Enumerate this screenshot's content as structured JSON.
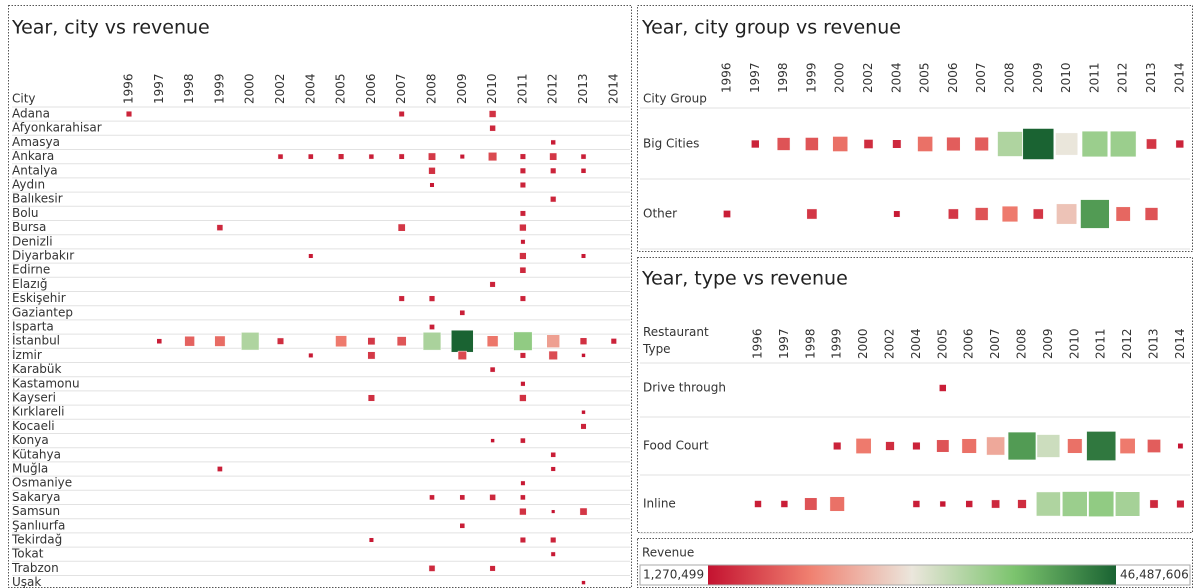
{
  "chart_data": [
    {
      "type": "heatmap",
      "title": "Year, city vs revenue",
      "row_header": "City",
      "categories": [
        "1996",
        "1997",
        "1998",
        "1999",
        "2000",
        "2002",
        "2004",
        "2005",
        "2006",
        "2007",
        "2008",
        "2009",
        "2010",
        "2011",
        "2012",
        "2013",
        "2014"
      ],
      "series": [
        {
          "name": "Adana",
          "values": [
            3100000,
            null,
            null,
            null,
            null,
            null,
            null,
            null,
            null,
            2900000,
            null,
            null,
            4600000,
            null,
            null,
            null,
            null
          ]
        },
        {
          "name": "Afyonkarahisar",
          "values": [
            null,
            null,
            null,
            null,
            null,
            null,
            null,
            null,
            null,
            null,
            null,
            null,
            3400000,
            null,
            null,
            null,
            null
          ]
        },
        {
          "name": "Amasya",
          "values": [
            null,
            null,
            null,
            null,
            null,
            null,
            null,
            null,
            null,
            null,
            null,
            null,
            null,
            null,
            2300000,
            null,
            null
          ]
        },
        {
          "name": "Ankara",
          "values": [
            null,
            null,
            null,
            null,
            null,
            2500000,
            2600000,
            3100000,
            2400000,
            2800000,
            5200000,
            2000000,
            7000000,
            3000000,
            5100000,
            2500000,
            null
          ]
        },
        {
          "name": "Antalya",
          "values": [
            null,
            null,
            null,
            null,
            null,
            null,
            null,
            null,
            null,
            null,
            4500000,
            null,
            null,
            3000000,
            3000000,
            2400000,
            null
          ]
        },
        {
          "name": "Aydın",
          "values": [
            null,
            null,
            null,
            null,
            null,
            null,
            null,
            null,
            null,
            null,
            2000000,
            null,
            null,
            3000000,
            null,
            null,
            null
          ]
        },
        {
          "name": "Balıkesir",
          "values": [
            null,
            null,
            null,
            null,
            null,
            null,
            null,
            null,
            null,
            null,
            null,
            null,
            null,
            null,
            3100000,
            null,
            null
          ]
        },
        {
          "name": "Bolu",
          "values": [
            null,
            null,
            null,
            null,
            null,
            null,
            null,
            null,
            null,
            null,
            null,
            null,
            null,
            2900000,
            null,
            null,
            null
          ]
        },
        {
          "name": "Bursa",
          "values": [
            null,
            null,
            null,
            3500000,
            null,
            null,
            null,
            null,
            null,
            5100000,
            null,
            null,
            null,
            4500000,
            null,
            null,
            null
          ]
        },
        {
          "name": "Denizli",
          "values": [
            null,
            null,
            null,
            null,
            null,
            null,
            null,
            null,
            null,
            null,
            null,
            null,
            null,
            2000000,
            null,
            null,
            null
          ]
        },
        {
          "name": "Diyarbakır",
          "values": [
            null,
            null,
            null,
            null,
            null,
            null,
            2000000,
            null,
            null,
            null,
            null,
            null,
            null,
            4400000,
            null,
            2000000,
            null
          ]
        },
        {
          "name": "Edirne",
          "values": [
            null,
            null,
            null,
            null,
            null,
            null,
            null,
            null,
            null,
            null,
            null,
            null,
            null,
            3600000,
            null,
            null,
            null
          ]
        },
        {
          "name": "Elazığ",
          "values": [
            null,
            null,
            null,
            null,
            null,
            null,
            null,
            null,
            null,
            null,
            null,
            null,
            3000000,
            null,
            null,
            null,
            null
          ]
        },
        {
          "name": "Eskişehir",
          "values": [
            null,
            null,
            null,
            null,
            null,
            null,
            null,
            null,
            null,
            3000000,
            3200000,
            null,
            null,
            3000000,
            null,
            null,
            null
          ]
        },
        {
          "name": "Gaziantep",
          "values": [
            null,
            null,
            null,
            null,
            null,
            null,
            null,
            null,
            null,
            null,
            null,
            2600000,
            null,
            null,
            null,
            null,
            null
          ]
        },
        {
          "name": "Isparta",
          "values": [
            null,
            null,
            null,
            null,
            null,
            null,
            null,
            null,
            null,
            null,
            2600000,
            null,
            null,
            null,
            null,
            null,
            null
          ]
        },
        {
          "name": "İstanbul",
          "values": [
            null,
            2500000,
            9500000,
            10500000,
            30000000,
            4100000,
            null,
            12000000,
            5200000,
            8200000,
            30500000,
            46487606,
            11500000,
            33000000,
            16000000,
            4500000,
            3000000
          ]
        },
        {
          "name": "İzmir",
          "values": [
            null,
            null,
            null,
            null,
            null,
            null,
            2000000,
            null,
            5300000,
            null,
            null,
            7000000,
            null,
            3000000,
            7200000,
            1500000,
            null
          ]
        },
        {
          "name": "Karabük",
          "values": [
            null,
            null,
            null,
            null,
            null,
            null,
            null,
            null,
            null,
            null,
            null,
            null,
            2500000,
            null,
            null,
            null,
            null
          ]
        },
        {
          "name": "Kastamonu",
          "values": [
            null,
            null,
            null,
            null,
            null,
            null,
            null,
            null,
            null,
            null,
            null,
            null,
            null,
            2100000,
            null,
            null,
            null
          ]
        },
        {
          "name": "Kayseri",
          "values": [
            null,
            null,
            null,
            null,
            null,
            null,
            null,
            null,
            4200000,
            null,
            null,
            null,
            null,
            4500000,
            null,
            null,
            null
          ]
        },
        {
          "name": "Kırklareli",
          "values": [
            null,
            null,
            null,
            null,
            null,
            null,
            null,
            null,
            null,
            null,
            null,
            null,
            null,
            null,
            null,
            1500000,
            null
          ]
        },
        {
          "name": "Kocaeli",
          "values": [
            null,
            null,
            null,
            null,
            null,
            null,
            null,
            null,
            null,
            null,
            null,
            null,
            null,
            null,
            null,
            3000000,
            null
          ]
        },
        {
          "name": "Konya",
          "values": [
            null,
            null,
            null,
            null,
            null,
            null,
            null,
            null,
            null,
            null,
            null,
            null,
            1500000,
            2500000,
            null,
            null,
            null
          ]
        },
        {
          "name": "Kütahya",
          "values": [
            null,
            null,
            null,
            null,
            null,
            null,
            null,
            null,
            null,
            null,
            null,
            null,
            null,
            null,
            2500000,
            null,
            null
          ]
        },
        {
          "name": "Muğla",
          "values": [
            null,
            null,
            null,
            2600000,
            null,
            null,
            null,
            null,
            null,
            null,
            null,
            null,
            null,
            null,
            2100000,
            null,
            null
          ]
        },
        {
          "name": "Osmaniye",
          "values": [
            null,
            null,
            null,
            null,
            null,
            null,
            null,
            null,
            null,
            null,
            null,
            null,
            null,
            2000000,
            null,
            null,
            null
          ]
        },
        {
          "name": "Sakarya",
          "values": [
            null,
            null,
            null,
            null,
            null,
            null,
            null,
            null,
            null,
            null,
            2500000,
            2600000,
            3500000,
            2500000,
            null,
            null,
            null
          ]
        },
        {
          "name": "Samsun",
          "values": [
            null,
            null,
            null,
            null,
            null,
            null,
            null,
            null,
            null,
            null,
            null,
            null,
            null,
            4500000,
            1270499,
            5000000,
            null
          ]
        },
        {
          "name": "Şanlıurfa",
          "values": [
            null,
            null,
            null,
            null,
            null,
            null,
            null,
            null,
            null,
            null,
            null,
            2500000,
            null,
            null,
            null,
            null,
            null
          ]
        },
        {
          "name": "Tekirdağ",
          "values": [
            null,
            null,
            null,
            null,
            null,
            null,
            null,
            null,
            2000000,
            null,
            null,
            null,
            null,
            3000000,
            3000000,
            null,
            null
          ]
        },
        {
          "name": "Tokat",
          "values": [
            null,
            null,
            null,
            null,
            null,
            null,
            null,
            null,
            null,
            null,
            null,
            null,
            null,
            null,
            2000000,
            null,
            null
          ]
        },
        {
          "name": "Trabzon",
          "values": [
            null,
            null,
            null,
            null,
            null,
            null,
            null,
            null,
            null,
            null,
            3600000,
            null,
            3000000,
            null,
            null,
            null,
            null
          ]
        },
        {
          "name": "Uşak",
          "values": [
            null,
            null,
            null,
            null,
            null,
            null,
            null,
            null,
            null,
            null,
            null,
            null,
            null,
            null,
            null,
            1500000,
            null
          ]
        }
      ]
    },
    {
      "type": "heatmap",
      "title": "Year, city group vs revenue",
      "row_header": "City Group",
      "categories": [
        "1996",
        "1997",
        "1998",
        "1999",
        "2000",
        "2002",
        "2004",
        "2005",
        "2006",
        "2007",
        "2008",
        "2009",
        "2010",
        "2011",
        "2012",
        "2013",
        "2014"
      ],
      "series": [
        {
          "name": "Big Cities",
          "values": [
            null,
            3000000,
            8000000,
            8200000,
            11000000,
            4000000,
            3500000,
            11000000,
            9000000,
            9000000,
            30000000,
            46487606,
            24000000,
            32000000,
            32000000,
            5000000,
            3000000
          ]
        },
        {
          "name": "Other",
          "values": [
            2500000,
            null,
            null,
            5000000,
            null,
            null,
            2000000,
            null,
            5000000,
            8000000,
            12000000,
            5000000,
            20000000,
            40000000,
            10000000,
            8000000,
            null
          ]
        }
      ]
    },
    {
      "type": "heatmap",
      "title": "Year, type vs revenue",
      "row_header": "Restaurant Type",
      "categories": [
        "1996",
        "1997",
        "1998",
        "1999",
        "2000",
        "2002",
        "2004",
        "2005",
        "2006",
        "2007",
        "2008",
        "2009",
        "2010",
        "2011",
        "2012",
        "2013",
        "2014"
      ],
      "series": [
        {
          "name": "Drive through",
          "values": [
            null,
            null,
            null,
            null,
            null,
            null,
            null,
            2500000,
            null,
            null,
            null,
            null,
            null,
            null,
            null,
            null,
            null
          ]
        },
        {
          "name": "Food Court",
          "values": [
            null,
            null,
            null,
            3000000,
            12000000,
            4000000,
            3000000,
            8000000,
            11000000,
            17000000,
            40000000,
            27000000,
            11000000,
            44000000,
            12000000,
            9000000,
            1500000
          ]
        },
        {
          "name": "Inline",
          "values": [
            2500000,
            2500000,
            8000000,
            11000000,
            null,
            null,
            2500000,
            1800000,
            2500000,
            3500000,
            4000000,
            30000000,
            32000000,
            33000000,
            31000000,
            3500000,
            3000000
          ]
        }
      ]
    }
  ],
  "color_scale": {
    "title": "Revenue",
    "range": [
      {
        "value": 1270499,
        "label": "1,270,499"
      },
      {
        "value": 46487606,
        "label": "46,487,606"
      }
    ],
    "colors": [
      "#c41230",
      "#f08070",
      "#ebe6dc",
      "#7cc46e",
      "#1a6332"
    ]
  }
}
